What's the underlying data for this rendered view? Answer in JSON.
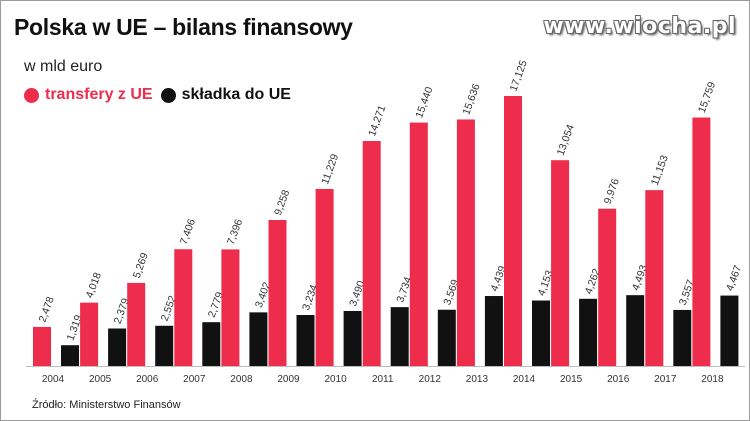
{
  "header": {
    "title": "Polska w UE – bilans finansowy",
    "subtitle": "w mld euro",
    "watermark": "www.wiocha.pl"
  },
  "legend": {
    "red_label": "transfery z UE",
    "black_label": "składka do UE"
  },
  "source": "Źródło: Ministerstwo Finansów",
  "colors": {
    "red": "#ee2c4c",
    "black": "#111111"
  },
  "chart_data": {
    "type": "bar",
    "categories": [
      "2004",
      "2005",
      "2006",
      "2007",
      "2008",
      "2009",
      "2010",
      "2011",
      "2012",
      "2013",
      "2014",
      "2015",
      "2016",
      "2017",
      "2018"
    ],
    "series": [
      {
        "name": "transfery z UE",
        "values": [
          2.478,
          4.018,
          5.269,
          7.406,
          7.396,
          9.258,
          11.229,
          14.271,
          15.44,
          15.636,
          17.125,
          13.054,
          9.976,
          11.153,
          15.759
        ],
        "labels": [
          "2,478",
          "4,018",
          "5,269",
          "7,406",
          "7,396",
          "9,258",
          "11,229",
          "14,271",
          "15,440",
          "15,636",
          "17,125",
          "13,054",
          "9,976",
          "11,153",
          "15,759"
        ]
      },
      {
        "name": "składka do UE",
        "values": [
          1.319,
          2.379,
          2.552,
          2.779,
          3.402,
          3.234,
          3.49,
          3.734,
          3.569,
          4.439,
          4.153,
          4.262,
          4.493,
          3.557,
          4.467
        ],
        "labels": [
          "1,319",
          "2,379",
          "2,552",
          "2,779",
          "3,402",
          "3,234",
          "3,490",
          "3,734",
          "3,569",
          "4,439",
          "4,153",
          "4,262",
          "4,493",
          "3,557",
          "4,467"
        ]
      }
    ],
    "title": "Polska w UE – bilans finansowy",
    "ylabel": "w mld euro",
    "ylim": [
      0,
      17.125
    ],
    "grid": false,
    "legend_position": "top-left"
  }
}
